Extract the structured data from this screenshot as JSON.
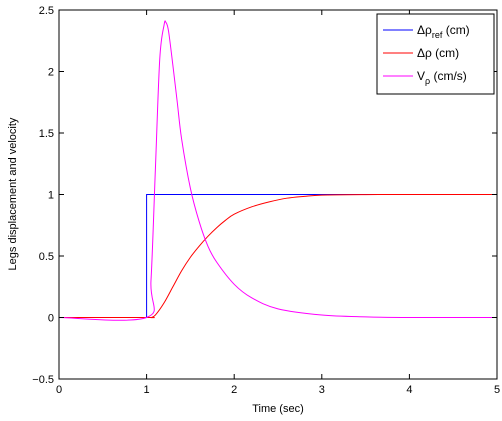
{
  "chart_data": {
    "type": "line",
    "xlabel": "Time (sec)",
    "ylabel": "Legs displacement and velocity",
    "xlim": [
      0,
      5
    ],
    "ylim": [
      -0.5,
      2.5
    ],
    "x_ticks": [
      "0",
      "1",
      "2",
      "3",
      "4",
      "5"
    ],
    "y_ticks": [
      "−0.5",
      "0",
      "0.5",
      "1",
      "1.5",
      "2",
      "2.5"
    ],
    "grid": false,
    "legend_position": "top-right",
    "series": [
      {
        "name": "Δρref (cm)",
        "legend_main": "Δρ",
        "legend_sub": "ref",
        "legend_unit": "(cm)",
        "color": "#0000ff",
        "x": [
          0,
          0.99,
          1.0,
          1.0,
          5
        ],
        "y": [
          0,
          0,
          0,
          1,
          1
        ]
      },
      {
        "name": "Δρ (cm)",
        "legend_main": "Δρ",
        "legend_sub": "",
        "legend_unit": "(cm)",
        "color": "#ff0000",
        "x": [
          0,
          1.0,
          1.05,
          1.1,
          1.2,
          1.3,
          1.4,
          1.5,
          1.6,
          1.7,
          1.8,
          1.9,
          2.0,
          2.2,
          2.4,
          2.6,
          2.8,
          3.0,
          3.5,
          4.0,
          5.0
        ],
        "y": [
          0,
          0,
          0.0,
          0.02,
          0.12,
          0.25,
          0.38,
          0.49,
          0.58,
          0.66,
          0.73,
          0.79,
          0.84,
          0.9,
          0.94,
          0.97,
          0.985,
          0.995,
          0.999,
          1.0,
          1.0
        ]
      },
      {
        "name": "Vρ (cm/s)",
        "legend_main": "V",
        "legend_sub": "ρ",
        "legend_unit": "(cm/s)",
        "color": "#ff00ff",
        "x": [
          0,
          1.0,
          1.05,
          1.1,
          1.15,
          1.2,
          1.22,
          1.25,
          1.3,
          1.35,
          1.4,
          1.5,
          1.6,
          1.7,
          1.8,
          2.0,
          2.2,
          2.5,
          3.0,
          3.5,
          4.0,
          5.0
        ],
        "y": [
          0,
          0,
          0.3,
          1.2,
          2.1,
          2.38,
          2.4,
          2.33,
          2.05,
          1.75,
          1.45,
          1.05,
          0.78,
          0.58,
          0.45,
          0.27,
          0.16,
          0.07,
          0.02,
          0.005,
          0,
          0
        ]
      }
    ]
  }
}
